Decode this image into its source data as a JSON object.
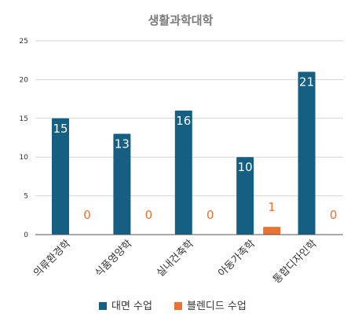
{
  "chart_data": {
    "type": "bar",
    "title": "생활과학대학",
    "categories": [
      "의류환경학",
      "식품영양학",
      "실내건축학",
      "아동가족학",
      "통합디자인학"
    ],
    "series": [
      {
        "name": "대면 수업",
        "color": "#145f82",
        "values": [
          15,
          13,
          16,
          10,
          21
        ]
      },
      {
        "name": "블렌디드 수업",
        "color": "#e97132",
        "values": [
          0,
          0,
          0,
          1,
          0
        ]
      }
    ],
    "ylim": [
      0,
      25
    ],
    "yticks": [
      0,
      5,
      10,
      15,
      20,
      25
    ],
    "grid": true,
    "legend_position": "bottom"
  }
}
